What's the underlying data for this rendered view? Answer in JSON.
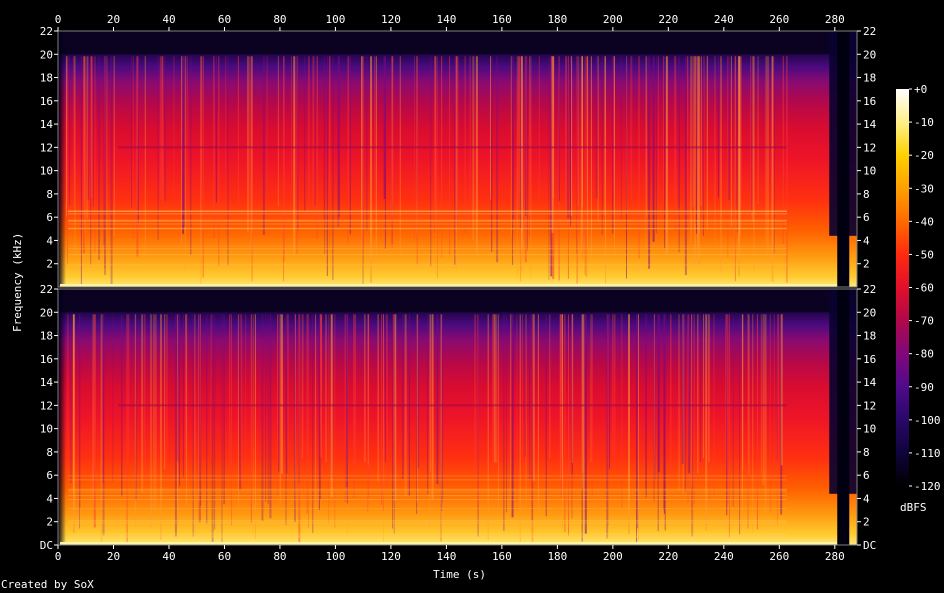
{
  "chart_data": {
    "type": "heatmap",
    "title": "",
    "xlabel": "Time (s)",
    "ylabel": "Frequency (kHz)",
    "x_ticks": [
      "0",
      "20",
      "40",
      "60",
      "80",
      "100",
      "120",
      "140",
      "160",
      "180",
      "200",
      "220",
      "240",
      "260",
      "280"
    ],
    "xlim": [
      0,
      288
    ],
    "ylim_khz": [
      0,
      22
    ],
    "y_ticks_top": [
      "22",
      "20",
      "18",
      "16",
      "14",
      "12",
      "10",
      "8",
      "6",
      "4",
      "2"
    ],
    "y_ticks_bottom": [
      "22",
      "20",
      "18",
      "16",
      "14",
      "12",
      "10",
      "8",
      "6",
      "4",
      "2",
      "DC"
    ],
    "channels": 2,
    "colorbar": {
      "label": "dBFS",
      "ticks": [
        "+0",
        "-10",
        "-20",
        "-30",
        "-40",
        "-50",
        "-60",
        "-70",
        "-80",
        "-90",
        "-100",
        "-110",
        "-120"
      ],
      "colors": [
        "#ffffff",
        "#fff08a",
        "#ffd000",
        "#ffa000",
        "#ff6a00",
        "#ff2a10",
        "#e0102a",
        "#b0084a",
        "#80087a",
        "#500a8a",
        "#280868",
        "#10043a",
        "#000000"
      ]
    }
  },
  "footer": {
    "credit": "Created by SoX"
  }
}
